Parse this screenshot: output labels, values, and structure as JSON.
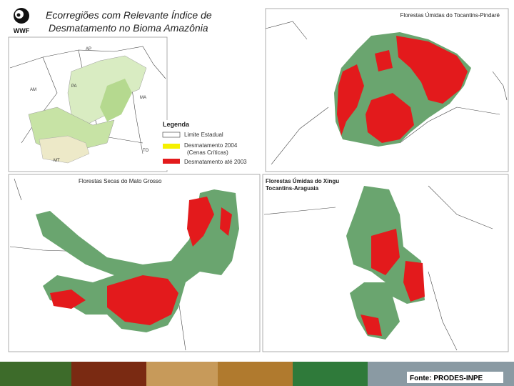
{
  "header": {
    "logo": "WWF",
    "title_lines": [
      "Ecorregiões com Relevante Índice de",
      "Desmatamento no Bioma Amazônia"
    ]
  },
  "overview": {
    "state_labels": [
      "AP",
      "AM",
      "PA",
      "MA",
      "TO",
      "MT"
    ],
    "legend": {
      "title": "Legenda",
      "items": [
        "Limite Estadual",
        "Desmatamento 2004",
        "(Cenas Críticas)",
        "Desmatamento até 2003"
      ]
    }
  },
  "panels": [
    {
      "title_lines": [
        "Florestas Úmidas do Tocantins-Pindaré"
      ]
    },
    {
      "title_lines": [
        "Florestas Secas do Mato Grosso"
      ]
    },
    {
      "title_lines": [
        "Florestas Úmidas do Xingu",
        "Tocantins-Araguaia"
      ]
    }
  ],
  "footer": {
    "source": "Fonte: PRODES-INPE"
  }
}
